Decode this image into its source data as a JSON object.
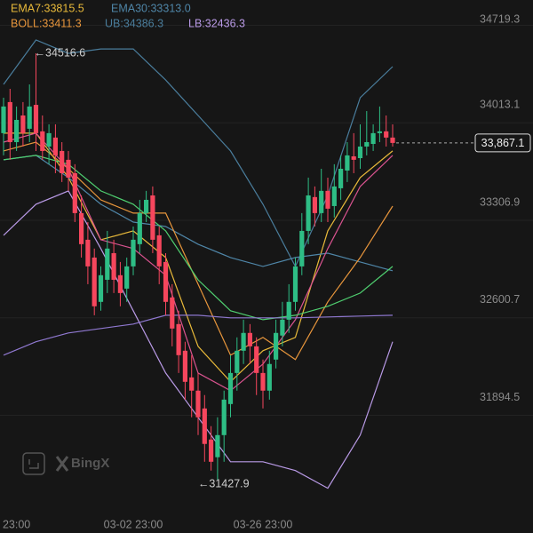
{
  "chart_data": {
    "type": "candlestick",
    "up_color": "#2ebd85",
    "down_color": "#f6465d",
    "categories": [
      null,
      null,
      "23:00",
      null,
      null,
      null,
      null,
      null,
      null,
      null,
      null,
      null,
      null,
      null,
      null,
      null,
      null,
      null,
      null,
      null,
      "03-02 23:00",
      null,
      null,
      null,
      null,
      null,
      null,
      null,
      null,
      null,
      null,
      null,
      null,
      null,
      null,
      null,
      null,
      null,
      null,
      null,
      "03-26 23:00",
      null,
      null,
      null,
      null,
      null,
      null,
      null,
      null,
      null,
      null,
      null,
      null,
      null,
      null,
      null,
      null,
      null,
      null,
      null,
      null
    ],
    "open": [
      33938,
      34163,
      33873,
      34066,
      33970,
      34143,
      33951,
      33841,
      33906,
      33809,
      33745,
      33648,
      33359,
      33166,
      33037,
      32716,
      32876,
      33069,
      32909,
      32812,
      32973,
      33134,
      33359,
      33487,
      33198,
      33005,
      32748,
      32555,
      32362,
      32169,
      32073,
      31944,
      31719,
      31591,
      31751,
      31976,
      32201,
      32362,
      32491,
      32394,
      32201,
      32073,
      32298,
      32472,
      32587,
      32716,
      32973,
      33230,
      33475,
      33359,
      33520,
      33410,
      33539,
      33667,
      33770,
      33757,
      33841,
      33860,
      33938,
      33951,
      33906
    ],
    "high": [
      34195,
      34259,
      34131,
      34163,
      34291,
      34516.6,
      34066,
      34002,
      34002,
      33873,
      33809,
      33713,
      33487,
      33294,
      33102,
      32973,
      33230,
      33166,
      33005,
      33037,
      33262,
      33455,
      33520,
      33552,
      33262,
      33069,
      32844,
      32652,
      32427,
      32330,
      32201,
      32041,
      31816,
      31880,
      32073,
      32330,
      32459,
      32587,
      32555,
      32459,
      32298,
      32362,
      32587,
      32716,
      32844,
      33037,
      33359,
      33616,
      33552,
      33680,
      33616,
      33713,
      33777,
      33873,
      33938,
      34002,
      34098,
      34002,
      34131,
      34066,
      34002
    ],
    "low": [
      33777,
      33745,
      33809,
      33841,
      33873,
      33809,
      33745,
      33713,
      33648,
      33584,
      33520,
      33294,
      33037,
      32844,
      32619,
      32652,
      32780,
      32780,
      32684,
      32716,
      32909,
      33069,
      33294,
      33069,
      32844,
      32619,
      32394,
      32201,
      32008,
      31880,
      31751,
      31558,
      31494,
      31427.9,
      31558,
      31880,
      32073,
      32266,
      32266,
      32041,
      31944,
      32008,
      32234,
      32394,
      32491,
      32652,
      32909,
      33134,
      33262,
      33294,
      33294,
      33327,
      33455,
      33584,
      33648,
      33680,
      33777,
      33809,
      33873,
      33841,
      33841
    ],
    "close": [
      34131,
      33873,
      34034,
      33938,
      34131,
      33938,
      33809,
      33938,
      33777,
      33648,
      33616,
      33359,
      33134,
      32973,
      32684,
      32909,
      33102,
      32876,
      32780,
      32973,
      33166,
      33359,
      33455,
      33166,
      32973,
      32716,
      32523,
      32330,
      32137,
      32073,
      31880,
      31687,
      31558,
      31751,
      32008,
      32201,
      32362,
      32491,
      32394,
      32201,
      32073,
      32266,
      32491,
      32587,
      32716,
      32973,
      33230,
      33487,
      33359,
      33520,
      33391,
      33552,
      33680,
      33777,
      33745,
      33841,
      33873,
      33938,
      33951,
      33906,
      33867.1
    ],
    "ylim": [
      31042,
      34902.4
    ],
    "yticks": [
      34719.3,
      34013.1,
      33306.9,
      32600.7,
      31894.5
    ],
    "current_price": {
      "value": 33867.1,
      "label": "33,867.1"
    },
    "annotations": [
      "←34516.6",
      "←31427.9"
    ],
    "watermark": "BingX",
    "lines": [
      {
        "label": "UB:34386.3",
        "color": "#4a7d9c",
        "values": [
          34291,
          34613,
          34516,
          34548,
          34548,
          34323,
          34066,
          33809,
          33423,
          32973,
          33487,
          34195,
          34420
        ]
      },
      {
        "label": "LB:32436.3",
        "color": "#b99ae6",
        "values": [
          33198,
          33423,
          33520,
          33102,
          32652,
          32201,
          31880,
          31558,
          31558,
          31494,
          31366,
          31751,
          32427
        ]
      },
      {
        "label": "EMA7:33815.5",
        "color": "#e8b93a",
        "values": [
          33938,
          33938,
          33616,
          33166,
          33230,
          33037,
          32394,
          32137,
          32362,
          32459,
          33230,
          33616,
          33809
        ]
      },
      {
        "label": "EMA30:33313.0",
        "color": "#4f86a8",
        "values": [
          33745,
          33777,
          33616,
          33423,
          33294,
          33262,
          33134,
          33037,
          32973,
          33037,
          33069,
          33005,
          32941
        ]
      },
      {
        "label": "BOLL:33411.3",
        "color": "#e8963c",
        "values": [
          33809,
          33873,
          33680,
          33455,
          33359,
          33359,
          32844,
          32330,
          32459,
          32298,
          32716,
          33037,
          33410
        ]
      },
      {
        "color": "#d9538f",
        "values": [
          33873,
          33938,
          33680,
          33166,
          33102,
          32909,
          32201,
          32073,
          32266,
          32587,
          33102,
          33552,
          33777
        ]
      },
      {
        "color": "#4fcf70",
        "values": [
          33745,
          33777,
          33713,
          33520,
          33423,
          33230,
          32876,
          32652,
          32587,
          32619,
          32684,
          32780,
          32973
        ]
      },
      {
        "color": "#8f78d0",
        "values": [
          32330,
          32427,
          32491,
          32523,
          32555,
          32619,
          32619,
          32600,
          32600,
          32600,
          32607,
          32613,
          32619
        ]
      }
    ]
  }
}
